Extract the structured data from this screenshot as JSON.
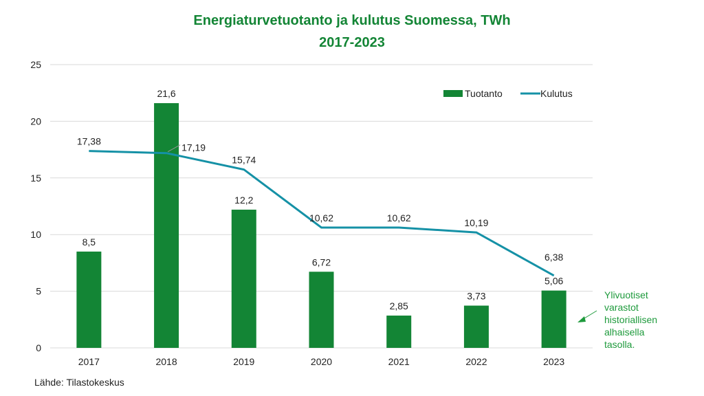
{
  "chart_data": {
    "type": "bar",
    "title": "Energiaturvetuotanto ja kulutus Suomessa, TWh",
    "subtitle": "2017-2023",
    "categories": [
      "2017",
      "2018",
      "2019",
      "2020",
      "2021",
      "2022",
      "2023"
    ],
    "ylim": [
      0,
      25
    ],
    "yticks": [
      0,
      5,
      10,
      15,
      20,
      25
    ],
    "grid": true,
    "legend_position": "top-right",
    "series": [
      {
        "name": "Tuotanto",
        "kind": "bar",
        "color": "#138535",
        "values": [
          8.5,
          21.6,
          12.2,
          6.72,
          2.85,
          3.73,
          5.06
        ],
        "labels": [
          "8,5",
          "21,6",
          "12,2",
          "6,72",
          "2,85",
          "3,73",
          "5,06"
        ]
      },
      {
        "name": "Kulutus",
        "kind": "line",
        "color": "#1591a6",
        "values": [
          17.38,
          17.19,
          15.74,
          10.62,
          10.62,
          10.19,
          6.38
        ],
        "labels": [
          "17,38",
          "17,19",
          "15,74",
          "10,62",
          "10,62",
          "10,19",
          "6,38"
        ]
      }
    ],
    "annotation": [
      "Ylivuotiset",
      "varastot",
      "historiallisen",
      "alhaisella",
      "tasolla."
    ],
    "source": "Lähde: Tilastokeskus"
  }
}
